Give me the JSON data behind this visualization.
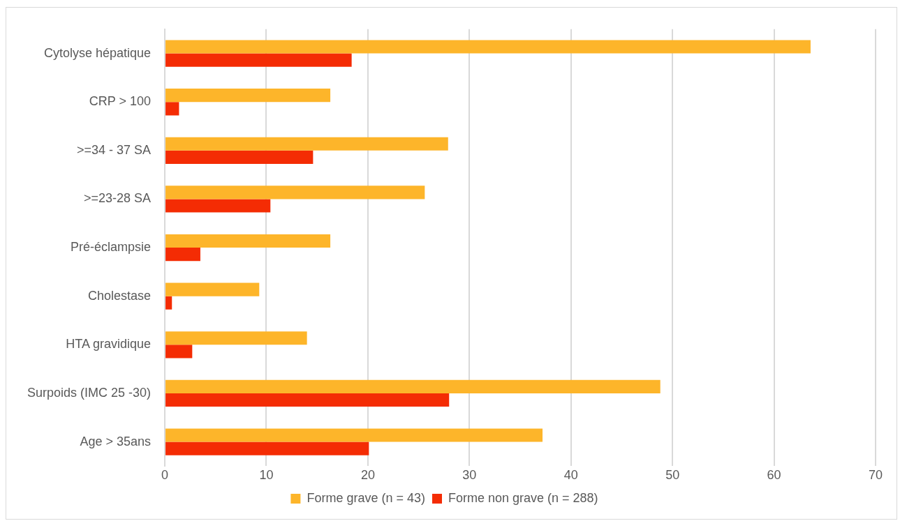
{
  "chart_data": {
    "type": "bar",
    "orientation": "horizontal",
    "categories": [
      "Cytolyse hépatique",
      "CRP > 100",
      ">=34 - 37 SA",
      ">=23-28 SA",
      "Pré-éclampsie",
      "Cholestase",
      "HTA gravidique",
      "Surpoids (IMC 25 -30)",
      "Age > 35ans"
    ],
    "series": [
      {
        "name": "Forme grave (n = 43)",
        "color": "#fdb52a",
        "values": [
          63.6,
          16.3,
          27.9,
          25.6,
          16.3,
          9.3,
          14.0,
          48.8,
          37.2
        ]
      },
      {
        "name": "Forme non grave (n = 288)",
        "color": "#f42c04",
        "values": [
          18.4,
          1.4,
          14.6,
          10.4,
          3.5,
          0.7,
          2.7,
          28.0,
          20.1
        ]
      }
    ],
    "xlim": [
      0,
      70
    ],
    "xticks": [
      0,
      10,
      20,
      30,
      40,
      50,
      60,
      70
    ],
    "grid": "x",
    "legend": "bottom"
  }
}
